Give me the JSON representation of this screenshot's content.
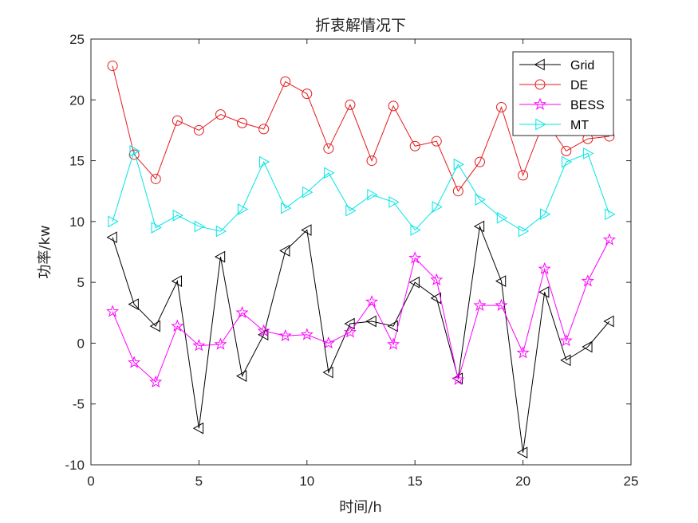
{
  "chart_data": {
    "type": "line",
    "title": "折衷解情况下",
    "xlabel": "时间/h",
    "ylabel": "功率/kw",
    "xlim": [
      0,
      25
    ],
    "ylim": [
      -10,
      25
    ],
    "xticks": [
      0,
      5,
      10,
      15,
      20,
      25
    ],
    "yticks": [
      -10,
      -5,
      0,
      5,
      10,
      15,
      20,
      25
    ],
    "x": [
      1,
      2,
      3,
      4,
      5,
      6,
      7,
      8,
      9,
      10,
      11,
      12,
      13,
      14,
      15,
      16,
      17,
      18,
      19,
      20,
      21,
      22,
      23,
      24
    ],
    "grid": false,
    "legend_position": "top-right",
    "series": [
      {
        "name": "Grid",
        "color": "#000000",
        "marker": "triangle-left",
        "values": [
          8.7,
          3.2,
          1.4,
          5.1,
          -7.0,
          7.1,
          -2.7,
          0.7,
          7.6,
          9.3,
          -2.4,
          1.6,
          1.8,
          1.4,
          5.0,
          3.7,
          -2.9,
          9.6,
          5.1,
          -9.0,
          4.2,
          -1.4,
          -0.3,
          1.8
        ]
      },
      {
        "name": "DE",
        "color": "#e41a1c",
        "marker": "circle",
        "values": [
          22.8,
          15.5,
          13.5,
          18.3,
          17.5,
          18.8,
          18.1,
          17.6,
          21.5,
          20.5,
          16.0,
          19.6,
          15.0,
          19.5,
          16.2,
          16.6,
          12.5,
          14.9,
          19.4,
          13.8,
          18.4,
          15.8,
          16.8,
          17.0
        ]
      },
      {
        "name": "BESS",
        "color": "#ff00ff",
        "marker": "star",
        "values": [
          2.6,
          -1.6,
          -3.2,
          1.4,
          -0.2,
          -0.1,
          2.5,
          1.0,
          0.6,
          0.7,
          0.0,
          0.9,
          3.4,
          -0.1,
          7.0,
          5.2,
          -3.0,
          3.1,
          3.1,
          -0.8,
          6.1,
          0.2,
          5.1,
          8.5
        ]
      },
      {
        "name": "MT",
        "color": "#00e5e5",
        "marker": "triangle-right",
        "values": [
          10.0,
          15.8,
          9.5,
          10.5,
          9.6,
          9.2,
          11.0,
          14.9,
          11.1,
          12.4,
          14.0,
          10.9,
          12.2,
          11.6,
          9.3,
          11.2,
          14.7,
          11.8,
          10.3,
          9.2,
          10.6,
          14.9,
          15.6,
          10.6
        ]
      }
    ]
  }
}
